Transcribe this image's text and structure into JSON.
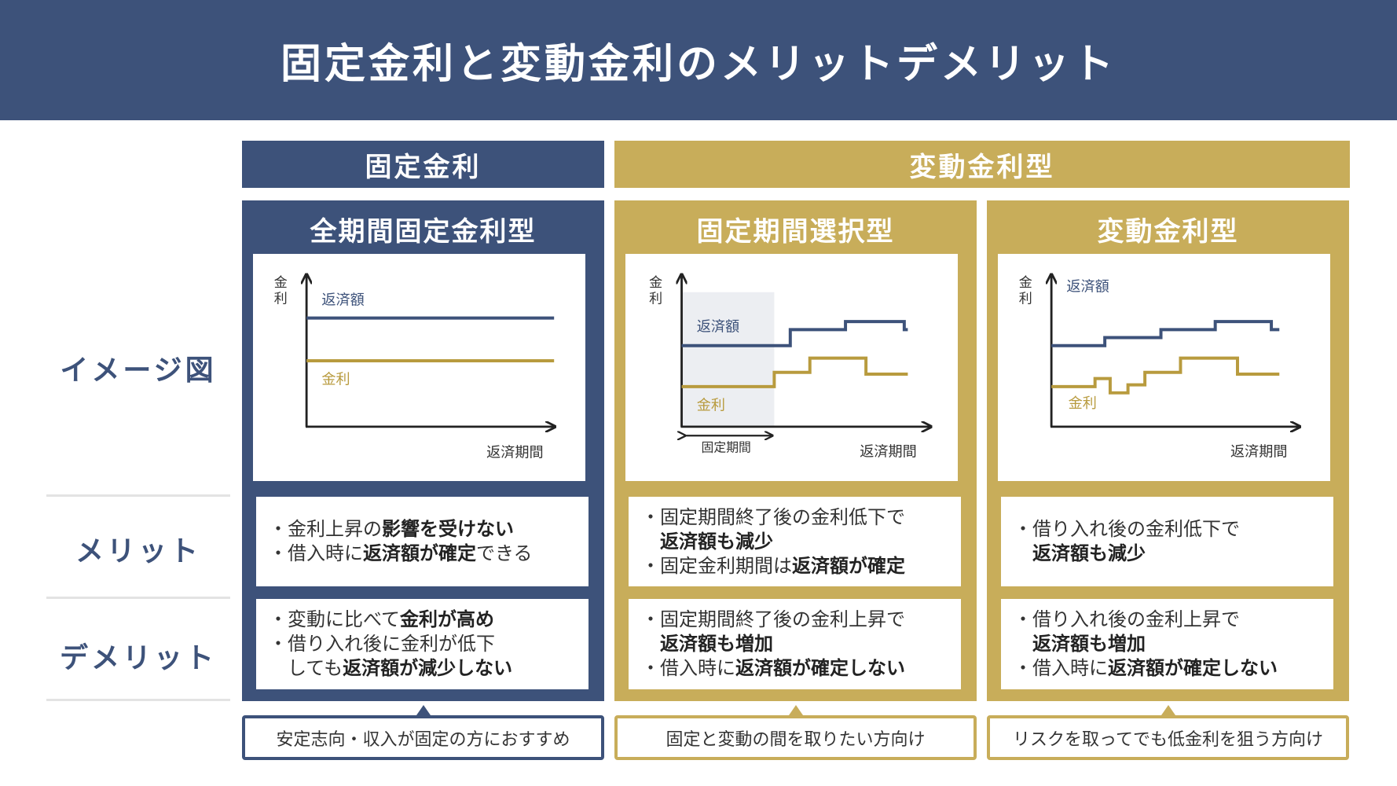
{
  "title": "固定金利と変動金利のメリットデメリット",
  "colors": {
    "navy": "#3d527a",
    "gold": "#c8ad5a",
    "shade": "#eceef2"
  },
  "groups": {
    "fixed": "固定金利",
    "variable": "変動金利型"
  },
  "rows": {
    "image": "イメージ図",
    "merit": "メリット",
    "demerit": "デメリット"
  },
  "chart_labels": {
    "y_axis": [
      "金",
      "利"
    ],
    "repayment": "返済額",
    "rate": "金利",
    "x_axis": "返済期間",
    "fixed_period": "固定期間"
  },
  "columns": [
    {
      "title": "全期間固定金利型",
      "merits": [
        [
          {
            "t": "金利上昇の"
          },
          {
            "t": "影響を受けない",
            "b": true
          }
        ],
        [
          {
            "t": "借入時に"
          },
          {
            "t": "返済額が確定",
            "b": true
          },
          {
            "t": "できる"
          }
        ]
      ],
      "demerits": [
        [
          {
            "t": "変動に比べて"
          },
          {
            "t": "金利が高め",
            "b": true
          }
        ],
        [
          {
            "t": "借り入れ後に金利が低下"
          },
          {
            "br": true
          },
          {
            "t": "しても"
          },
          {
            "t": "返済額が減少しない",
            "b": true
          }
        ]
      ],
      "footer": "安定志向・収入が固定の方におすすめ"
    },
    {
      "title": "固定期間選択型",
      "merits": [
        [
          {
            "t": "固定期間終了後の金利低下で"
          },
          {
            "br": true
          },
          {
            "t": "返済額も減少",
            "b": true
          }
        ],
        [
          {
            "t": "固定金利期間は"
          },
          {
            "t": "返済額が確定",
            "b": true
          }
        ]
      ],
      "demerits": [
        [
          {
            "t": "固定期間終了後の金利上昇で"
          },
          {
            "br": true
          },
          {
            "t": "返済額も増加",
            "b": true
          }
        ],
        [
          {
            "t": "借入時に"
          },
          {
            "t": "返済額が確定しない",
            "b": true
          }
        ]
      ],
      "footer": "固定と変動の間を取りたい方向け"
    },
    {
      "title": "変動金利型",
      "merits": [
        [
          {
            "t": "借り入れ後の金利低下で"
          },
          {
            "br": true
          },
          {
            "t": "返済額も減少",
            "b": true
          }
        ]
      ],
      "demerits": [
        [
          {
            "t": "借り入れ後の金利上昇で"
          },
          {
            "br": true
          },
          {
            "t": "返済額も増加",
            "b": true
          }
        ],
        [
          {
            "t": "借入時に"
          },
          {
            "t": "返済額が確定しない",
            "b": true
          }
        ]
      ],
      "footer": "リスクを取ってでも低金利を狙う方向け"
    }
  ]
}
